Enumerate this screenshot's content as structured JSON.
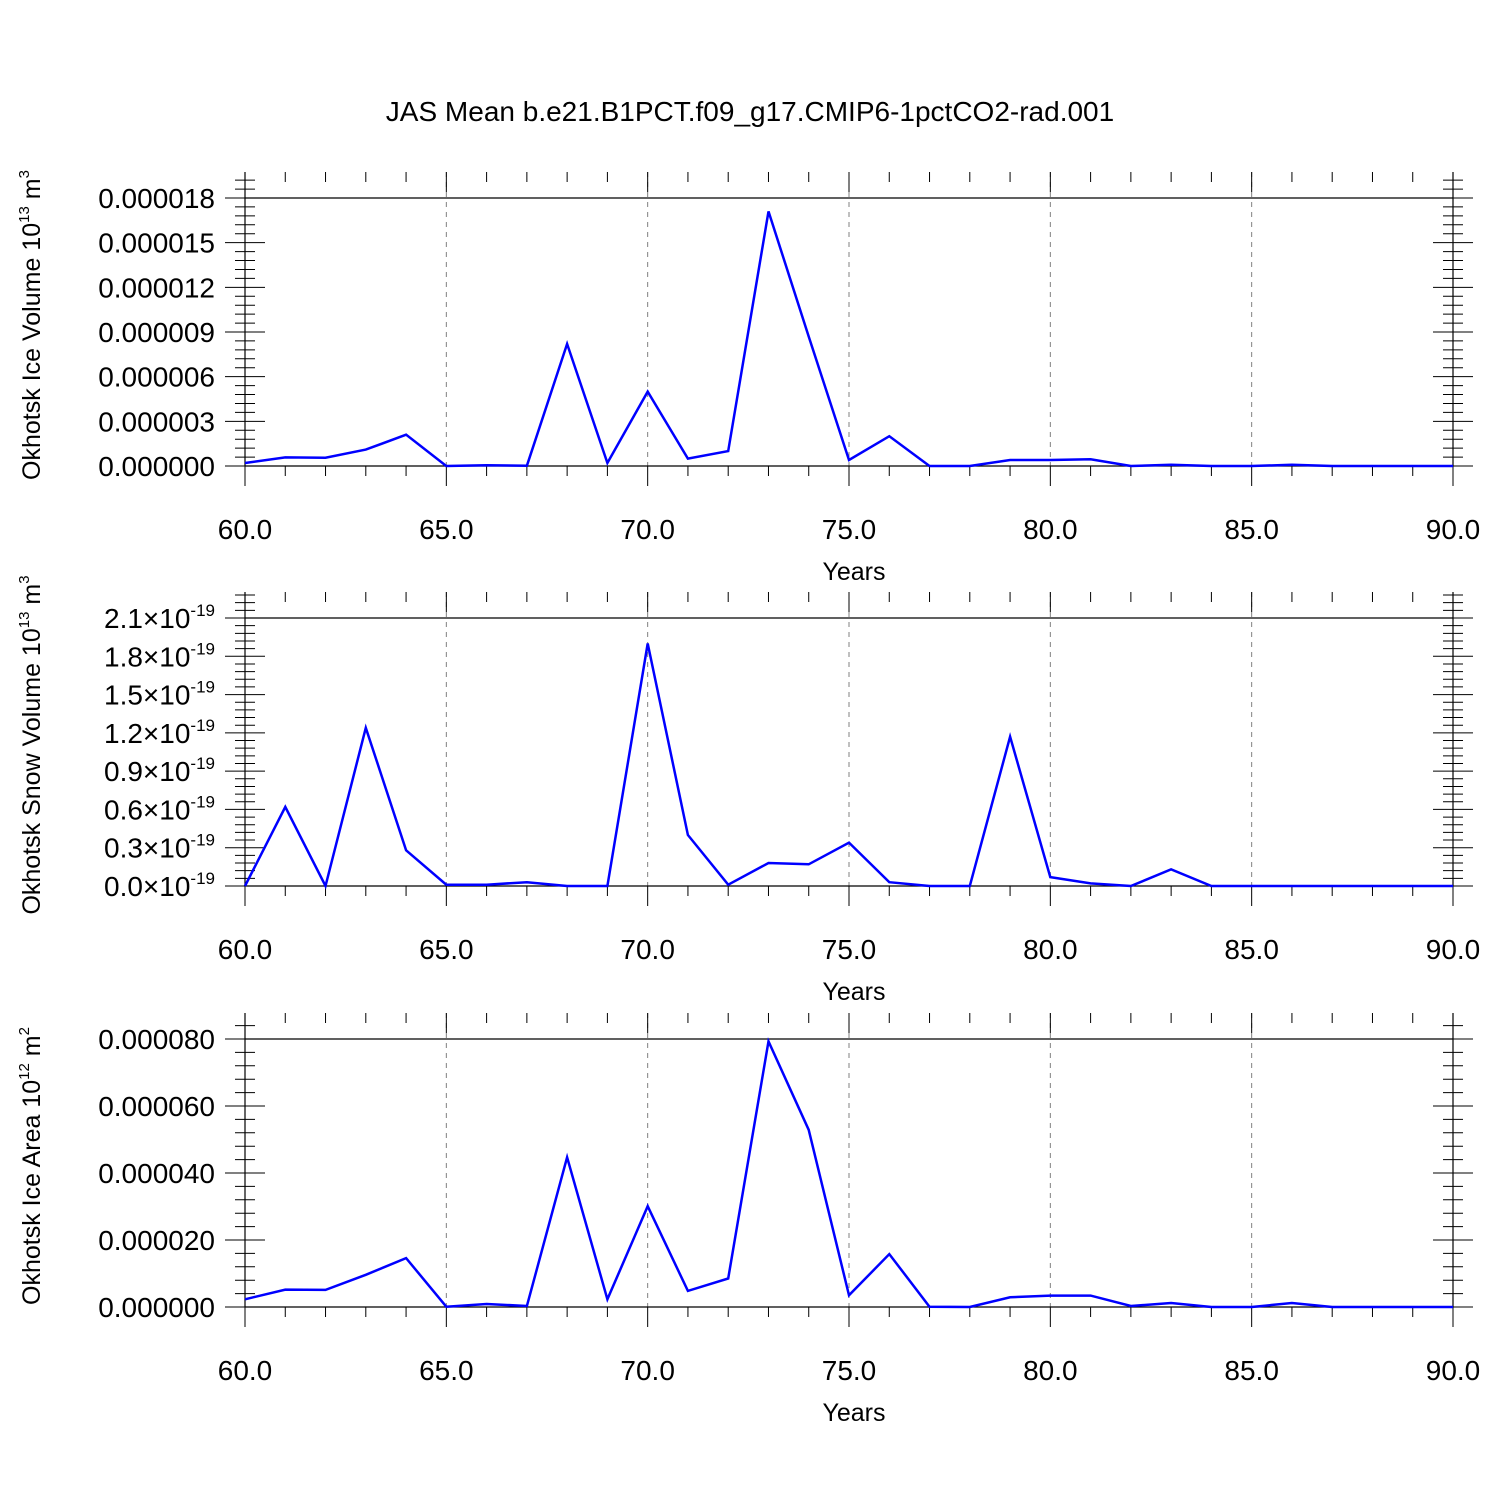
{
  "title": "JAS Mean b.e21.B1PCT.f09_g17.CMIP6-1pctCO2-rad.001",
  "colors": {
    "series": "#0000ff",
    "axis": "#000000",
    "grid": "#808080"
  },
  "chart_data": [
    {
      "type": "line",
      "title": "",
      "xlabel": "Years",
      "ylabel": "Okhotsk Ice Volume 10",
      "ylabel_exp": "13",
      "ylabel_unit": " m",
      "ylabel_unit_exp": "3",
      "xlim": [
        60,
        90
      ],
      "ylim": [
        0,
        1.8e-05
      ],
      "xticks": [
        60,
        65,
        70,
        75,
        80,
        85,
        90
      ],
      "xtick_labels": [
        "60.0",
        "65.0",
        "70.0",
        "75.0",
        "80.0",
        "85.0",
        "90.0"
      ],
      "yticks": [
        0,
        3e-06,
        6e-06,
        9e-06,
        1.2e-05,
        1.5e-05,
        1.8e-05
      ],
      "ytick_labels": [
        "0.000000",
        "0.000003",
        "0.000006",
        "0.000009",
        "0.000012",
        "0.000015",
        "0.000018"
      ],
      "ytick_exp": "",
      "grid": "vertical dashed at major x ticks",
      "x": [
        60,
        61,
        62,
        63,
        64,
        65,
        66,
        67,
        68,
        69,
        70,
        71,
        72,
        73,
        74,
        75,
        76,
        77,
        78,
        79,
        80,
        81,
        82,
        83,
        84,
        85,
        86,
        87,
        88,
        89,
        90
      ],
      "series": [
        {
          "values": [
            2e-07,
            5.8e-07,
            5.6e-07,
            1.1e-06,
            2.1e-06,
            0.0,
            5e-08,
            2e-08,
            8.2e-06,
            2e-07,
            5e-06,
            5e-07,
            1e-06,
            1.71e-05,
            8.7e-06,
            4e-07,
            2e-06,
            0.0,
            0.0,
            4e-07,
            4e-07,
            4.5e-07,
            0.0,
            8e-08,
            0.0,
            0.0,
            8e-08,
            0.0,
            0.0,
            0.0,
            0.0
          ]
        }
      ]
    },
    {
      "type": "line",
      "title": "",
      "xlabel": "Years",
      "ylabel": "Okhotsk Snow Volume 10",
      "ylabel_exp": "13",
      "ylabel_unit": " m",
      "ylabel_unit_exp": "3",
      "xlim": [
        60,
        90
      ],
      "ylim": [
        0,
        2.1
      ],
      "xticks": [
        60,
        65,
        70,
        75,
        80,
        85,
        90
      ],
      "xtick_labels": [
        "60.0",
        "65.0",
        "70.0",
        "75.0",
        "80.0",
        "85.0",
        "90.0"
      ],
      "yticks": [
        0,
        0.3,
        0.6,
        0.9,
        1.2,
        1.5,
        1.8,
        2.1
      ],
      "ytick_labels": [
        "0.0×10",
        "0.3×10",
        "0.6×10",
        "0.9×10",
        "1.2×10",
        "1.5×10",
        "1.8×10",
        "2.1×10"
      ],
      "ytick_exp": "-19",
      "grid": "vertical dashed at major x ticks",
      "x": [
        60,
        61,
        62,
        63,
        64,
        65,
        66,
        67,
        68,
        69,
        70,
        71,
        72,
        73,
        74,
        75,
        76,
        77,
        78,
        79,
        80,
        81,
        82,
        83,
        84,
        85,
        86,
        87,
        88,
        89,
        90
      ],
      "series": [
        {
          "values": [
            0.0,
            0.62,
            0.0,
            1.24,
            0.28,
            0.01,
            0.01,
            0.03,
            0.0,
            0.0,
            1.9,
            0.4,
            0.01,
            0.18,
            0.17,
            0.34,
            0.03,
            0.0,
            0.0,
            1.17,
            0.07,
            0.02,
            0.0,
            0.13,
            0.0,
            0.0,
            0.0,
            0.0,
            0.0,
            0.0,
            0.0
          ]
        }
      ]
    },
    {
      "type": "line",
      "title": "",
      "xlabel": "Years",
      "ylabel": "Okhotsk Ice Area 10",
      "ylabel_exp": "12",
      "ylabel_unit": " m",
      "ylabel_unit_exp": "2",
      "xlim": [
        60,
        90
      ],
      "ylim": [
        0,
        8e-05
      ],
      "xticks": [
        60,
        65,
        70,
        75,
        80,
        85,
        90
      ],
      "xtick_labels": [
        "60.0",
        "65.0",
        "70.0",
        "75.0",
        "80.0",
        "85.0",
        "90.0"
      ],
      "yticks": [
        0,
        2e-05,
        4e-05,
        6e-05,
        8e-05
      ],
      "ytick_labels": [
        "0.000000",
        "0.000020",
        "0.000040",
        "0.000060",
        "0.000080"
      ],
      "ytick_exp": "",
      "grid": "vertical dashed at major x ticks",
      "x": [
        60,
        61,
        62,
        63,
        64,
        65,
        66,
        67,
        68,
        69,
        70,
        71,
        72,
        73,
        74,
        75,
        76,
        77,
        78,
        79,
        80,
        81,
        82,
        83,
        84,
        85,
        86,
        87,
        88,
        89,
        90
      ],
      "series": [
        {
          "values": [
            2.3e-06,
            5.2e-06,
            5.1e-06,
            9.6e-06,
            1.46e-05,
            1e-07,
            9e-07,
            3e-07,
            4.47e-05,
            2.3e-06,
            3.01e-05,
            4.8e-06,
            8.5e-06,
            7.93e-05,
            5.29e-05,
            3.5e-06,
            1.58e-05,
            1e-07,
            0.0,
            2.9e-06,
            3.4e-06,
            3.4e-06,
            3e-07,
            1.2e-06,
            0.0,
            0.0,
            1.2e-06,
            0.0,
            0.0,
            0.0,
            0.0
          ]
        }
      ]
    }
  ]
}
